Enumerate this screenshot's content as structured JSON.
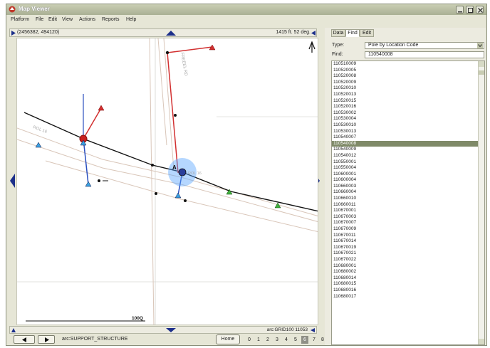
{
  "window": {
    "title": "Map Viewer"
  },
  "menu": [
    "Platform",
    "File",
    "Edit",
    "View",
    "Actions",
    "Reports",
    "Help"
  ],
  "map": {
    "coords": "(2456382, 494120)",
    "scale_info": "1415 ft. 52 deg.",
    "scale_bar_label": "100Q",
    "layer_info": "arc:GRID100 11053",
    "road_label": "FREEEL RD",
    "road_label_2": "ROL 16",
    "point_label": "A",
    "point_label_2": "ROL 16"
  },
  "statusbar": {
    "feature_class": "arc:SUPPORT_STRUCTURE",
    "home_label": "Home",
    "pages": [
      "0",
      "1",
      "2",
      "3",
      "4",
      "5",
      "6",
      "7",
      "8"
    ],
    "selected_page": "6"
  },
  "panel": {
    "tabs": [
      "Data",
      "Find",
      "Edit"
    ],
    "active_tab": "Find",
    "type_label": "Type:",
    "type_value": "Pole by Location Code",
    "find_label": "Find:",
    "find_value": "110540008",
    "results": [
      "110510009",
      "110520005",
      "110520008",
      "110520009",
      "110520010",
      "110520013",
      "110520015",
      "110520016",
      "110530002",
      "110530004",
      "110530010",
      "110530013",
      "110540007",
      "110540008",
      "110540009",
      "110540012",
      "110550001",
      "110550004",
      "110600001",
      "110600004",
      "110660003",
      "110660004",
      "110660010",
      "110660011",
      "110670001",
      "110670003",
      "110670007",
      "110670009",
      "110670011",
      "110670014",
      "110670019",
      "110670021",
      "110670022",
      "110680001",
      "110680002",
      "110680014",
      "110680015",
      "110680016",
      "110680017"
    ],
    "selected_result": "110540008"
  },
  "colors": {
    "selected_row": "#7f8a68",
    "nav_arrow": "#1c2f8a",
    "red_line": "#d23030",
    "blue_line": "#2a4fbf"
  }
}
